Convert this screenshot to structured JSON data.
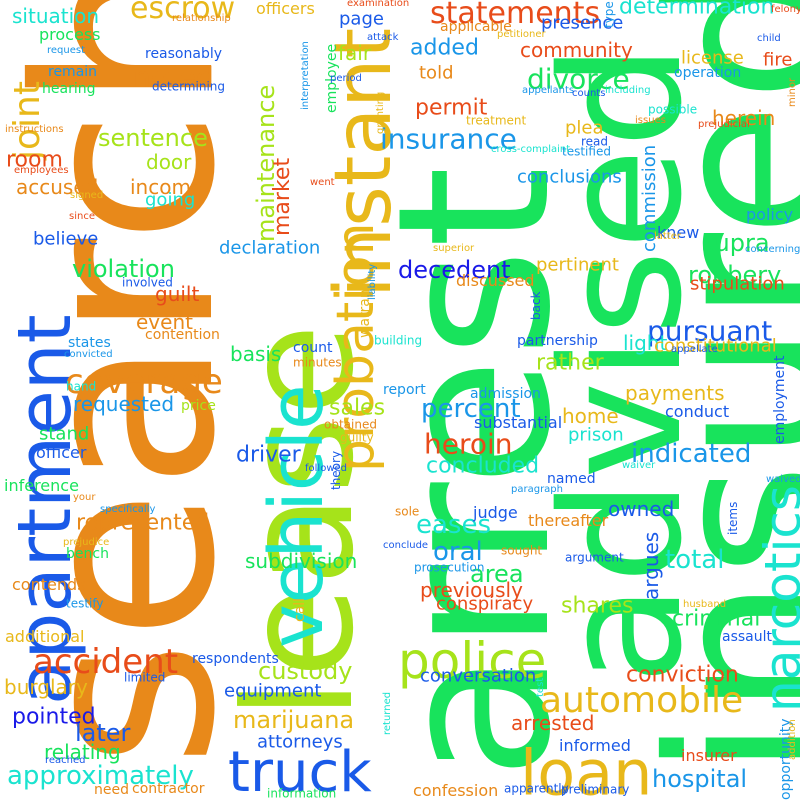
{
  "words": [
    {
      "text": "search",
      "color": "#e8891a"
    },
    {
      "text": "arrest",
      "color": "#18e35c"
    },
    {
      "text": "insured",
      "color": "#18e35c"
    },
    {
      "text": "advised",
      "color": "#18e35c"
    },
    {
      "text": "lease",
      "color": "#a6e31a"
    },
    {
      "text": "instant",
      "color": "#e8b81a"
    },
    {
      "text": "apartment",
      "color": "#1a5ae8"
    },
    {
      "text": "probation",
      "color": "#e8b81a"
    },
    {
      "text": "vehicle",
      "color": "#1ae3cf"
    },
    {
      "text": "truck",
      "color": "#1a5ae8"
    },
    {
      "text": "loan",
      "color": "#e8b81a"
    },
    {
      "text": "police",
      "color": "#a6e31a"
    },
    {
      "text": "narcotics",
      "color": "#1ae3cf"
    },
    {
      "text": "automobile",
      "color": "#e8b81a"
    },
    {
      "text": "coverage",
      "color": "#e8891a"
    },
    {
      "text": "accident",
      "color": "#e84c1a"
    },
    {
      "text": "statements",
      "color": "#e84c1a"
    },
    {
      "text": "escrow",
      "color": "#e8b81a"
    },
    {
      "text": "joint",
      "color": "#e8b81a"
    },
    {
      "text": "divorce",
      "color": "#18e35c"
    },
    {
      "text": "insurance",
      "color": "#1a96e8"
    },
    {
      "text": "pursuant",
      "color": "#1a5ae8"
    },
    {
      "text": "decedent",
      "color": "#1a1ae8"
    },
    {
      "text": "heroin",
      "color": "#e84c1a"
    },
    {
      "text": "percent",
      "color": "#1a96e8"
    },
    {
      "text": "indicated",
      "color": "#1a96e8"
    },
    {
      "text": "custody",
      "color": "#a6e31a"
    },
    {
      "text": "marijuana",
      "color": "#e8b81a"
    },
    {
      "text": "approximately",
      "color": "#1ae3cf"
    },
    {
      "text": "violation",
      "color": "#18e35c"
    },
    {
      "text": "sentence",
      "color": "#a6e31a"
    },
    {
      "text": "maintenance",
      "color": "#a6e31a"
    },
    {
      "text": "noted",
      "color": "#e8891a"
    },
    {
      "text": "supra",
      "color": "#18e35c"
    },
    {
      "text": "robbery",
      "color": "#18e35c"
    },
    {
      "text": "oral",
      "color": "#1a96e8"
    },
    {
      "text": "area",
      "color": "#18e35c"
    },
    {
      "text": "total",
      "color": "#1ae3cf"
    },
    {
      "text": "eases",
      "color": "#1ae3cf"
    },
    {
      "text": "criminal",
      "color": "#18e35c"
    },
    {
      "text": "conviction",
      "color": "#e84c1a"
    },
    {
      "text": "hospital",
      "color": "#1a96e8"
    },
    {
      "text": "later",
      "color": "#1a5ae8"
    },
    {
      "text": "pointed",
      "color": "#1a1ae8"
    },
    {
      "text": "driver",
      "color": "#1a5ae8"
    },
    {
      "text": "room",
      "color": "#e84c1a"
    },
    {
      "text": "shares",
      "color": "#a6e31a"
    },
    {
      "text": "argues",
      "color": "#1a5ae8"
    },
    {
      "text": "concluded",
      "color": "#1ae3cf"
    },
    {
      "text": "permit",
      "color": "#e84c1a"
    },
    {
      "text": "added",
      "color": "#1a96e8"
    },
    {
      "text": "community",
      "color": "#e84c1a"
    },
    {
      "text": "presence",
      "color": "#1a5ae8"
    },
    {
      "text": "determination",
      "color": "#1ae3cf"
    },
    {
      "text": "situation",
      "color": "#1ae3cf"
    },
    {
      "text": "officers",
      "color": "#e8b81a"
    },
    {
      "text": "page",
      "color": "#1a5ae8"
    },
    {
      "text": "fair",
      "color": "#a6e31a"
    },
    {
      "text": "told",
      "color": "#e8891a"
    },
    {
      "text": "market",
      "color": "#e84c1a"
    },
    {
      "text": "income",
      "color": "#e8891a"
    },
    {
      "text": "door",
      "color": "#a6e31a"
    },
    {
      "text": "going",
      "color": "#1ae3cf"
    },
    {
      "text": "accused",
      "color": "#e8891a"
    },
    {
      "text": "declaration",
      "color": "#1a96e8"
    },
    {
      "text": "believe",
      "color": "#1a5ae8"
    },
    {
      "text": "guilt",
      "color": "#e84c1a"
    },
    {
      "text": "event",
      "color": "#e8891a"
    },
    {
      "text": "basis",
      "color": "#18e35c"
    },
    {
      "text": "sales",
      "color": "#a6e31a"
    },
    {
      "text": "requested",
      "color": "#1a96e8"
    },
    {
      "text": "stand",
      "color": "#18e35c"
    },
    {
      "text": "represented",
      "color": "#e8891a"
    },
    {
      "text": "subdivision",
      "color": "#18e35c"
    },
    {
      "text": "burglary",
      "color": "#e8b81a"
    },
    {
      "text": "relating",
      "color": "#18e35c"
    },
    {
      "text": "attorneys",
      "color": "#1a5ae8"
    },
    {
      "text": "equipment",
      "color": "#1a5ae8"
    },
    {
      "text": "conversation",
      "color": "#1a5ae8"
    },
    {
      "text": "arrested",
      "color": "#e84c1a"
    },
    {
      "text": "informed",
      "color": "#1a5ae8"
    },
    {
      "text": "previously",
      "color": "#e84c1a"
    },
    {
      "text": "conspiracy",
      "color": "#e84c1a"
    },
    {
      "text": "owned",
      "color": "#1a5ae8"
    },
    {
      "text": "home",
      "color": "#e8b81a"
    },
    {
      "text": "prison",
      "color": "#1ae3cf"
    },
    {
      "text": "payments",
      "color": "#e8b81a"
    },
    {
      "text": "conduct",
      "color": "#1a5ae8"
    },
    {
      "text": "light",
      "color": "#1ae3cf"
    },
    {
      "text": "constitutional",
      "color": "#e8b81a"
    },
    {
      "text": "rather",
      "color": "#a6e31a"
    },
    {
      "text": "pertinent",
      "color": "#e8b81a"
    },
    {
      "text": "stipulation",
      "color": "#e84c1a"
    },
    {
      "text": "policy",
      "color": "#1a96e8"
    },
    {
      "text": "herein",
      "color": "#e8891a"
    },
    {
      "text": "commission",
      "color": "#1a96e8"
    },
    {
      "text": "conclusions",
      "color": "#1a96e8"
    },
    {
      "text": "plea",
      "color": "#e8b81a"
    },
    {
      "text": "knew",
      "color": "#1a5ae8"
    },
    {
      "text": "license",
      "color": "#e8b81a"
    },
    {
      "text": "operation",
      "color": "#1a96e8"
    },
    {
      "text": "fire",
      "color": "#e84c1a"
    },
    {
      "text": "warrant",
      "color": "#e8b81a"
    },
    {
      "text": "employment",
      "color": "#1a5ae8"
    },
    {
      "text": "opportunity",
      "color": "#1a96e8"
    },
    {
      "text": "judge",
      "color": "#1a5ae8"
    },
    {
      "text": "thereafter",
      "color": "#e8891a"
    },
    {
      "text": "substantial",
      "color": "#1a5ae8"
    },
    {
      "text": "discussed",
      "color": "#e8891a"
    },
    {
      "text": "partnership",
      "color": "#1a5ae8"
    },
    {
      "text": "report",
      "color": "#1a96e8"
    },
    {
      "text": "admission",
      "color": "#1a96e8"
    },
    {
      "text": "named",
      "color": "#1a5ae8"
    },
    {
      "text": "confession",
      "color": "#e8891a"
    },
    {
      "text": "insurer",
      "color": "#e84c1a"
    },
    {
      "text": "additional",
      "color": "#e8b81a"
    },
    {
      "text": "respondents",
      "color": "#1a5ae8"
    },
    {
      "text": "contends",
      "color": "#e8891a"
    },
    {
      "text": "inference",
      "color": "#18e35c"
    },
    {
      "text": "officer",
      "color": "#1a5ae8"
    },
    {
      "text": "process",
      "color": "#18e35c"
    },
    {
      "text": "remain",
      "color": "#1a96e8"
    },
    {
      "text": "hearing",
      "color": "#18e35c"
    },
    {
      "text": "reasonably",
      "color": "#1a5ae8"
    },
    {
      "text": "employee",
      "color": "#18e35c"
    },
    {
      "text": "determining",
      "color": "#1a5ae8"
    },
    {
      "text": "contention",
      "color": "#e8891a"
    },
    {
      "text": "price",
      "color": "#a6e31a"
    },
    {
      "text": "count",
      "color": "#1a5ae8"
    },
    {
      "text": "minutes",
      "color": "#e8891a"
    },
    {
      "text": "obtained",
      "color": "#e8891a"
    },
    {
      "text": "guilty",
      "color": "#e8b81a"
    },
    {
      "text": "building",
      "color": "#1ae3cf"
    },
    {
      "text": "back",
      "color": "#1a5ae8"
    },
    {
      "text": "states",
      "color": "#1a96e8"
    },
    {
      "text": "convicted",
      "color": "#1a96e8"
    },
    {
      "text": "involved",
      "color": "#1a5ae8"
    },
    {
      "text": "hand",
      "color": "#1ae3cf"
    },
    {
      "text": "theory",
      "color": "#1a5ae8"
    },
    {
      "text": "followed",
      "color": "#1a5ae8"
    },
    {
      "text": "assault",
      "color": "#1a5ae8"
    },
    {
      "text": "items",
      "color": "#1a5ae8"
    },
    {
      "text": "waiver",
      "color": "#1ae3cf"
    },
    {
      "text": "waived",
      "color": "#1a96e8"
    },
    {
      "text": "husband",
      "color": "#e8b81a"
    },
    {
      "text": "bench",
      "color": "#18e35c"
    },
    {
      "text": "prejudice",
      "color": "#e8b81a"
    },
    {
      "text": "testify",
      "color": "#1a96e8"
    },
    {
      "text": "call",
      "color": "#e8b81a"
    },
    {
      "text": "limited",
      "color": "#1a5ae8"
    },
    {
      "text": "need",
      "color": "#e8891a"
    },
    {
      "text": "contractor",
      "color": "#e8891a"
    },
    {
      "text": "information",
      "color": "#18e35c"
    },
    {
      "text": "apparently",
      "color": "#1a5ae8"
    },
    {
      "text": "preliminary",
      "color": "#1a5ae8"
    },
    {
      "text": "prosecution",
      "color": "#1a96e8"
    },
    {
      "text": "argument",
      "color": "#1a5ae8"
    },
    {
      "text": "sought",
      "color": "#e8891a"
    },
    {
      "text": "conclude",
      "color": "#1a5ae8"
    },
    {
      "text": "sole",
      "color": "#e8891a"
    },
    {
      "text": "paragraph",
      "color": "#1a96e8"
    },
    {
      "text": "appellate",
      "color": "#1a5ae8"
    },
    {
      "text": "returned",
      "color": "#1ae3cf"
    },
    {
      "text": "reached",
      "color": "#1a5ae8"
    },
    {
      "text": "specifically",
      "color": "#1a96e8"
    },
    {
      "text": "your",
      "color": "#e8891a"
    },
    {
      "text": "since",
      "color": "#e84c1a"
    },
    {
      "text": "signed",
      "color": "#e8b81a"
    },
    {
      "text": "employees",
      "color": "#e84c1a"
    },
    {
      "text": "instructions",
      "color": "#e8891a"
    },
    {
      "text": "request",
      "color": "#1a96e8"
    },
    {
      "text": "relationship",
      "color": "#e8891a"
    },
    {
      "text": "examination",
      "color": "#e84c1a"
    },
    {
      "text": "applicable",
      "color": "#e8891a"
    },
    {
      "text": "interpretation",
      "color": "#1a96e8"
    },
    {
      "text": "period",
      "color": "#1a5ae8"
    },
    {
      "text": "granting",
      "color": "#e8b81a"
    },
    {
      "text": "attack",
      "color": "#1a5ae8"
    },
    {
      "text": "petitioner",
      "color": "#e8b81a"
    },
    {
      "text": "type",
      "color": "#1a96e8"
    },
    {
      "text": "felony",
      "color": "#e84c1a"
    },
    {
      "text": "child",
      "color": "#1a5ae8"
    },
    {
      "text": "minor",
      "color": "#e8891a"
    },
    {
      "text": "appellants",
      "color": "#1a96e8"
    },
    {
      "text": "counts",
      "color": "#1a5ae8"
    },
    {
      "text": "including",
      "color": "#1ae3cf"
    },
    {
      "text": "treatment",
      "color": "#e8b81a"
    },
    {
      "text": "issues",
      "color": "#e8891a"
    },
    {
      "text": "prejudicial",
      "color": "#e84c1a"
    },
    {
      "text": "read",
      "color": "#1a5ae8"
    },
    {
      "text": "testified",
      "color": "#1a96e8"
    },
    {
      "text": "cross-complaint",
      "color": "#1ae3cf"
    },
    {
      "text": "latter",
      "color": "#e8b81a"
    },
    {
      "text": "superior",
      "color": "#e8b81a"
    },
    {
      "text": "concerning",
      "color": "#1a96e8"
    },
    {
      "text": "liability",
      "color": "#1a96e8"
    },
    {
      "text": "went",
      "color": "#e84c1a"
    },
    {
      "text": "possible",
      "color": "#1ae3cf"
    },
    {
      "text": "test",
      "color": "#1ae3cf"
    },
    {
      "text": "addition",
      "color": "#e8b81a"
    }
  ]
}
